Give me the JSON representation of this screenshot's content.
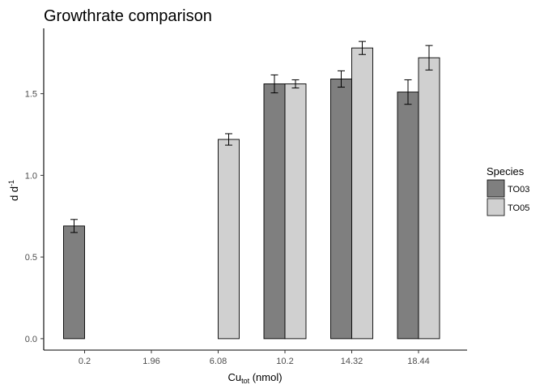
{
  "chart_data": {
    "type": "bar",
    "title": "Growthrate comparison",
    "xlabel": {
      "main": "Cu",
      "sub": "tot",
      "unit": " (nmol)"
    },
    "ylabel": {
      "main": "d d",
      "sup": "-1"
    },
    "categories": [
      "0.2",
      "1.96",
      "6.08",
      "10.2",
      "14.32",
      "18.44"
    ],
    "ylim": [
      -0.07,
      1.9
    ],
    "yticks": [
      0.0,
      0.5,
      1.0,
      1.5
    ],
    "ytick_labels": [
      "0.0",
      "0.5",
      "1.0",
      "1.5"
    ],
    "grid": false,
    "legend": {
      "title": "Species",
      "position": "right"
    },
    "series": [
      {
        "name": "TO03",
        "color": "#7f7f7f",
        "values": [
          0.69,
          null,
          null,
          1.56,
          1.59,
          1.51
        ],
        "error": [
          0.04,
          null,
          null,
          0.055,
          0.05,
          0.075
        ]
      },
      {
        "name": "TO05",
        "color": "#d0d0d0",
        "values": [
          null,
          null,
          1.22,
          1.56,
          1.78,
          1.72
        ],
        "error": [
          null,
          null,
          0.035,
          0.025,
          0.04,
          0.075
        ]
      }
    ]
  }
}
